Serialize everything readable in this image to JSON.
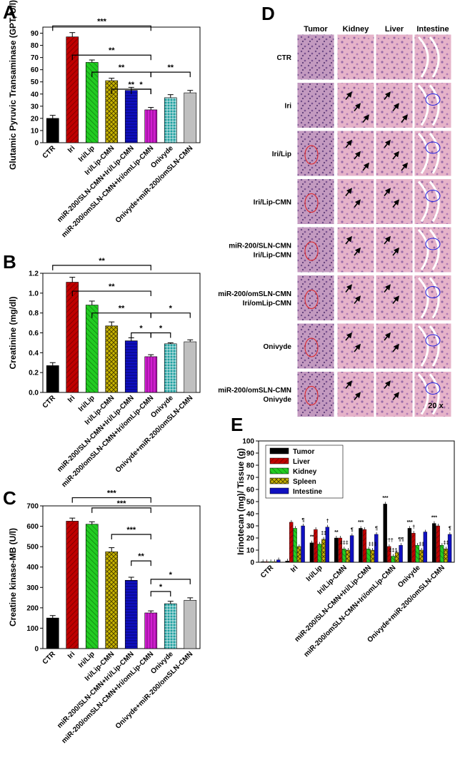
{
  "colors": {
    "black": "#000000",
    "red": "#c00000",
    "green": "#22cc22",
    "olive": "#c8b400",
    "blue": "#1010c0",
    "magenta": "#d020d0",
    "teal": "#20a0a0",
    "gray": "#bfbfbf",
    "tissue_pink": "#e6b3c9",
    "tissue_purple": "#b48ab8"
  },
  "groups": [
    "CTR",
    "Iri",
    "Iri/Lip",
    "Iri/Lip-CMN",
    "miR-200/SLN-CMN+Iri/Lip-CMN",
    "miR-200/omSLN-CMN+Iri/omLip-CMN",
    "Onivyde",
    "Onivyde+miR-200/omSLN-CMN"
  ],
  "chart_data": [
    {
      "panel": "A",
      "type": "bar",
      "ylabel": "Glutamic Pyruvic Transaminase (GPT, U/l)",
      "ylim": [
        0,
        95
      ],
      "yticks": [
        0,
        10,
        20,
        30,
        40,
        50,
        60,
        70,
        80,
        90
      ],
      "categories": [
        "CTR",
        "Iri",
        "Iri/Lip",
        "Iri/Lip-CMN",
        "miR-200/SLN-CMN+Iri/Lip-CMN",
        "miR-200/omSLN-CMN+Iri/omLip-CMN",
        "Onivyde",
        "Onivyde+miR-200/omSLN-CMN"
      ],
      "values": [
        20,
        87,
        66,
        51,
        43,
        27,
        37,
        41
      ],
      "errors": [
        2.5,
        3.5,
        2,
        2,
        2.5,
        2,
        2.5,
        2
      ],
      "brackets": [
        {
          "from": 0,
          "to": 5,
          "label": "***",
          "y": 96
        },
        {
          "from": 1,
          "to": 5,
          "label": "**",
          "y": 72
        },
        {
          "from": 2,
          "to": 5,
          "label": "**",
          "y": 58
        },
        {
          "from": 3,
          "to": 5,
          "label": "**",
          "y": 44
        },
        {
          "from": 4,
          "to": 5,
          "label": "*",
          "y": 44
        },
        {
          "from": 5,
          "to": 7,
          "label": "**",
          "y": 58
        }
      ]
    },
    {
      "panel": "B",
      "type": "bar",
      "ylabel": "Creatinine (mg/dl)",
      "ylim": [
        0,
        1.2
      ],
      "yticks": [
        0.0,
        0.2,
        0.4,
        0.6,
        0.8,
        1.0,
        1.2
      ],
      "categories": [
        "CTR",
        "Iri",
        "Iri/Lip",
        "Iri/Lip-CMN",
        "miR-200/SLN-CMN+Iri/Lip-CMN",
        "miR-200/omSLN-CMN+Iri/omLip-CMN",
        "Onivyde",
        "Onivyde+miR-200/omSLN-CMN"
      ],
      "values": [
        0.27,
        1.11,
        0.88,
        0.67,
        0.52,
        0.36,
        0.49,
        0.51
      ],
      "errors": [
        0.03,
        0.05,
        0.04,
        0.04,
        0.03,
        0.02,
        0.01,
        0.02
      ],
      "brackets": [
        {
          "from": 0,
          "to": 5,
          "label": "**",
          "y": 1.28
        },
        {
          "from": 1,
          "to": 5,
          "label": "**",
          "y": 1.02
        },
        {
          "from": 2,
          "to": 5,
          "label": "**",
          "y": 0.8
        },
        {
          "from": 4,
          "to": 5,
          "label": "*",
          "y": 0.6
        },
        {
          "from": 5,
          "to": 6,
          "label": "*",
          "y": 0.6
        },
        {
          "from": 5,
          "to": 7,
          "label": "*",
          "y": 0.8
        }
      ]
    },
    {
      "panel": "C",
      "type": "bar",
      "ylabel": "Creatine kinase-MB (U/l)",
      "ylim": [
        0,
        700
      ],
      "yticks": [
        0,
        100,
        200,
        300,
        400,
        500,
        600,
        700
      ],
      "categories": [
        "CTR",
        "Iri",
        "Iri/Lip",
        "Iri/Lip-CMN",
        "miR-200/SLN-CMN+Iri/Lip-CMN",
        "miR-200/omSLN-CMN+Iri/omLip-CMN",
        "Onivyde",
        "Onivyde+miR-200/omSLN-CMN"
      ],
      "values": [
        150,
        625,
        610,
        475,
        335,
        175,
        220,
        237
      ],
      "errors": [
        12,
        15,
        12,
        20,
        15,
        10,
        12,
        12
      ],
      "brackets": [
        {
          "from": 1,
          "to": 5,
          "label": "***",
          "y": 740
        },
        {
          "from": 2,
          "to": 5,
          "label": "***",
          "y": 690
        },
        {
          "from": 3,
          "to": 5,
          "label": "***",
          "y": 560
        },
        {
          "from": 4,
          "to": 5,
          "label": "**",
          "y": 430
        },
        {
          "from": 5,
          "to": 6,
          "label": "*",
          "y": 280
        },
        {
          "from": 5,
          "to": 7,
          "label": "*",
          "y": 340
        }
      ]
    },
    {
      "panel": "E",
      "type": "bar",
      "ylabel": "Irinotecan (mg)/ Tissue (g)",
      "ylim": [
        0,
        100
      ],
      "yticks": [
        0,
        10,
        20,
        30,
        40,
        50,
        60,
        70,
        80,
        90,
        100
      ],
      "categories": [
        "CTR",
        "Iri",
        "Iri/Lip",
        "Iri/Lip-CMN",
        "miR-200/SLN-CMN+Iri/Lip-CMN",
        "miR-200/omSLN-CMN+Iri/omLip-CMN",
        "Onivyde",
        "Onivyde+miR-200/omSLN-CMN"
      ],
      "series": [
        {
          "name": "Tumor",
          "color": "#000000",
          "values": [
            0.5,
            1,
            16,
            20,
            28,
            48,
            28,
            32
          ]
        },
        {
          "name": "Liver",
          "color": "#c00000",
          "values": [
            0.5,
            33,
            27,
            20,
            27,
            13,
            24,
            30
          ]
        },
        {
          "name": "Kidney",
          "color": "#22cc22",
          "values": [
            0.5,
            28,
            15,
            11,
            11,
            5,
            14,
            14
          ]
        },
        {
          "name": "Spleen",
          "color": "#c8b400",
          "values": [
            0.5,
            13,
            19,
            10,
            10,
            8,
            10,
            11
          ]
        },
        {
          "name": "Intestine",
          "color": "#1010c0",
          "values": [
            2,
            30,
            29,
            22,
            23,
            14,
            25,
            23
          ]
        }
      ],
      "annotations": [
        {
          "group": 1,
          "series": 4,
          "label": "¶"
        },
        {
          "group": 2,
          "series": 0,
          "label": "**"
        },
        {
          "group": 2,
          "series": 3,
          "label": "‡‡"
        },
        {
          "group": 2,
          "series": 4,
          "label": "†"
        },
        {
          "group": 3,
          "series": 0,
          "label": "**"
        },
        {
          "group": 3,
          "series": 2,
          "label": "‡‡‡"
        },
        {
          "group": 3,
          "series": 4,
          "label": "¶"
        },
        {
          "group": 4,
          "series": 0,
          "label": "***"
        },
        {
          "group": 4,
          "series": 3,
          "label": "‡‡‡"
        },
        {
          "group": 4,
          "series": 4,
          "label": "¶"
        },
        {
          "group": 5,
          "series": 0,
          "label": "***"
        },
        {
          "group": 5,
          "series": 1,
          "label": "†††"
        },
        {
          "group": 5,
          "series": 2,
          "label": "‡‡‡"
        },
        {
          "group": 5,
          "series": 4,
          "label": "¶¶"
        },
        {
          "group": 6,
          "series": 0,
          "label": "***"
        },
        {
          "group": 6,
          "series": 1,
          "label": "†"
        },
        {
          "group": 6,
          "series": 3,
          "label": "‡‡"
        },
        {
          "group": 7,
          "series": 0,
          "label": "***"
        },
        {
          "group": 7,
          "series": 3,
          "label": "‡‡"
        },
        {
          "group": 7,
          "series": 4,
          "label": "¶"
        }
      ],
      "legend": "top-left"
    }
  ],
  "histology": {
    "letter": "D",
    "columns": [
      "Tumor",
      "Kidney",
      "Liver",
      "Intestine"
    ],
    "rows": [
      [
        "CTR"
      ],
      [
        "Iri"
      ],
      [
        "Iri/Lip"
      ],
      [
        "Iri/Lip-CMN"
      ],
      [
        "miR-200/SLN-CMN",
        "Iri/Lip-CMN"
      ],
      [
        "miR-200/omSLN-CMN",
        "Iri/omLip-CMN"
      ],
      [
        "Onivyde"
      ],
      [
        "miR-200/omSLN-CMN",
        "Onivyde"
      ]
    ],
    "magnification": "20 x"
  }
}
